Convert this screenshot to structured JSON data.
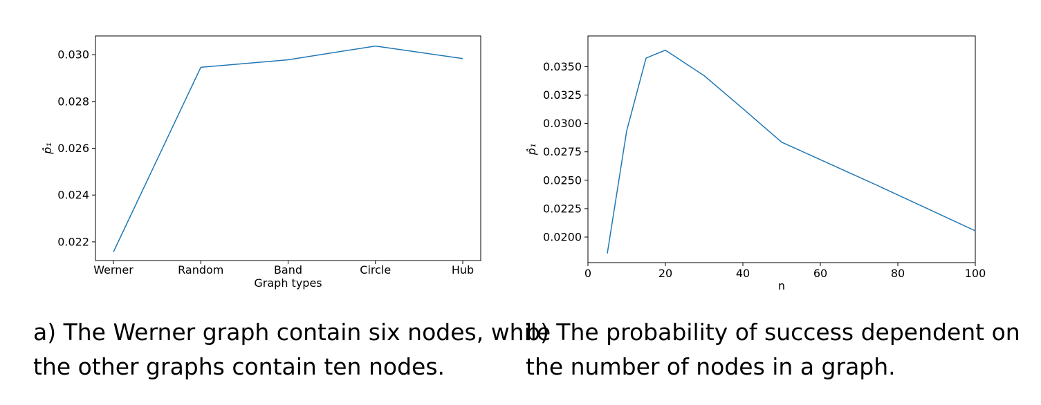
{
  "chart_data": [
    {
      "type": "line",
      "categories": [
        "Werner",
        "Random",
        "Band",
        "Circle",
        "Hub"
      ],
      "values": [
        0.02157,
        0.02946,
        0.02978,
        0.03037,
        0.02983
      ],
      "xlabel": "Graph types",
      "ylabel": "p̂₁",
      "ylim": [
        0.0212,
        0.0308
      ],
      "yticks": [
        0.022,
        0.024,
        0.026,
        0.028,
        0.03
      ],
      "ytick_labels": [
        "0.022",
        "0.024",
        "0.026",
        "0.028",
        "0.030"
      ],
      "color": "#1f77b4",
      "grid": false
    },
    {
      "type": "line",
      "x": [
        5,
        10,
        15,
        20,
        30,
        40,
        50,
        75,
        100
      ],
      "values": [
        0.01855,
        0.02935,
        0.03575,
        0.03645,
        0.0342,
        0.0313,
        0.02835,
        0.0245,
        0.02055
      ],
      "xlabel": "n",
      "ylabel": "p̂₁",
      "xlim": [
        0,
        100
      ],
      "ylim": [
        0.01775,
        0.0377
      ],
      "xticks": [
        0,
        20,
        40,
        60,
        80,
        100
      ],
      "xtick_labels": [
        "0",
        "20",
        "40",
        "60",
        "80",
        "100"
      ],
      "yticks": [
        0.02,
        0.0225,
        0.025,
        0.0275,
        0.03,
        0.0325,
        0.035
      ],
      "ytick_labels": [
        "0.0200",
        "0.0225",
        "0.0250",
        "0.0275",
        "0.0300",
        "0.0325",
        "0.0350"
      ],
      "color": "#1f77b4",
      "grid": false
    }
  ],
  "captions": {
    "a_line1": "a) The Werner graph contain six nodes, while",
    "a_line2": "the other graphs contain ten nodes.",
    "b_line1": "b) The probability of success dependent on",
    "b_line2": "the number of nodes in a graph."
  }
}
